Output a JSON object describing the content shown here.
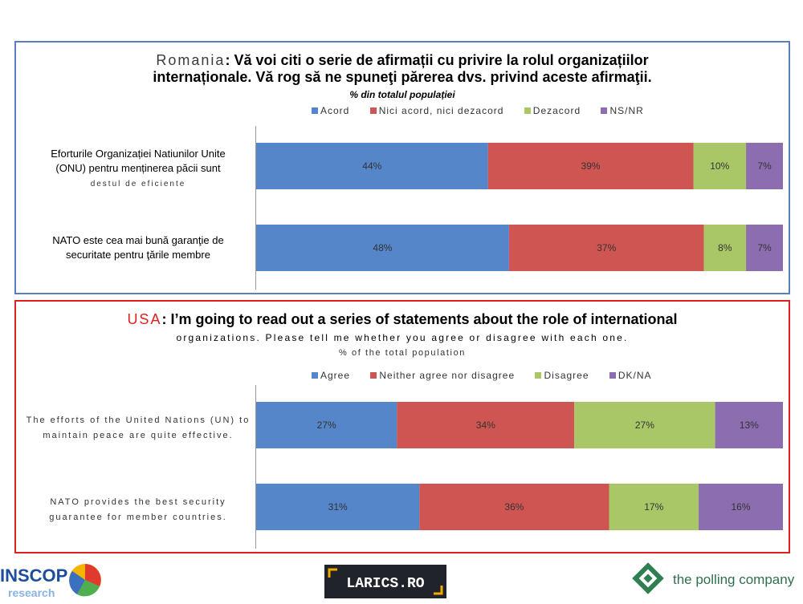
{
  "colors": {
    "agree": "#5486c9",
    "neither": "#cf5552",
    "disagree": "#a9c767",
    "dk": "#8c6db0"
  },
  "romania": {
    "title_country": "Romania",
    "title_colon": ":",
    "title_line1": "Vă voi citi o serie de afirmații cu privire la rolul organizațiilor",
    "title_line2": "internaționale. Vă rog să ne spuneţi părerea dvs. privind aceste afirmaţii.",
    "subtitle": "% din totalul populației",
    "legend": [
      "Acord",
      "Nici acord, nici dezacord",
      "Dezacord",
      "NS/NR"
    ],
    "cat1_line1": "Eforturile Organizației Natiunilor Unite",
    "cat1_line2": "(ONU)  pentru  menținerea păcii sunt",
    "cat1_line3": "destul de eficiente",
    "cat2_line1": "NATO este cea mai bună garanţie de",
    "cat2_line2": "securitate pentru ţările membre"
  },
  "usa": {
    "title_country": "USA",
    "title_colon": ":",
    "title_line1": "I’m going to read out a series of statements about the role of international",
    "title_line2": "organizations. Please tell me whether you agree or disagree with each one.",
    "subtitle": "% of the total population",
    "legend": [
      "Agree",
      "Neither agree nor disagree",
      "Disagree",
      "DK/NA"
    ],
    "cat1_line1": "The efforts of the United Nations (UN) to",
    "cat1_line2": "maintain peace are quite effective.",
    "cat2_line1": "NATO provides the best security",
    "cat2_line2": "guarantee for member countries."
  },
  "chart_data": [
    {
      "type": "bar",
      "orientation": "horizontal",
      "stacked": true,
      "percent": true,
      "categories": [
        "Eforturile Organizației Natiunilor Unite (ONU) pentru menținerea păcii sunt destul de eficiente",
        "NATO este cea mai bună garanţie de securitate pentru ţările membre"
      ],
      "series": [
        {
          "name": "Acord",
          "values": [
            44,
            48
          ]
        },
        {
          "name": "Nici acord, nici dezacord",
          "values": [
            39,
            37
          ]
        },
        {
          "name": "Dezacord",
          "values": [
            10,
            8
          ]
        },
        {
          "name": "NS/NR",
          "values": [
            7,
            7
          ]
        }
      ],
      "xlim": [
        0,
        100
      ],
      "legend": "top",
      "grid": false
    },
    {
      "type": "bar",
      "orientation": "horizontal",
      "stacked": true,
      "percent": true,
      "categories": [
        "The efforts of the United Nations (UN) to maintain peace are quite effective.",
        "NATO provides the best security guarantee for member countries."
      ],
      "series": [
        {
          "name": "Agree",
          "values": [
            27,
            31
          ]
        },
        {
          "name": "Neither agree nor disagree",
          "values": [
            34,
            36
          ]
        },
        {
          "name": "Disagree",
          "values": [
            27,
            17
          ]
        },
        {
          "name": "DK/NA",
          "values": [
            13,
            16
          ]
        }
      ],
      "xlim": [
        0,
        100
      ],
      "legend": "top",
      "grid": false
    }
  ],
  "logos": {
    "inscop_main": "INSCOP",
    "inscop_sub": "research",
    "larics": "LARICS.RO",
    "polling": "the polling company"
  }
}
